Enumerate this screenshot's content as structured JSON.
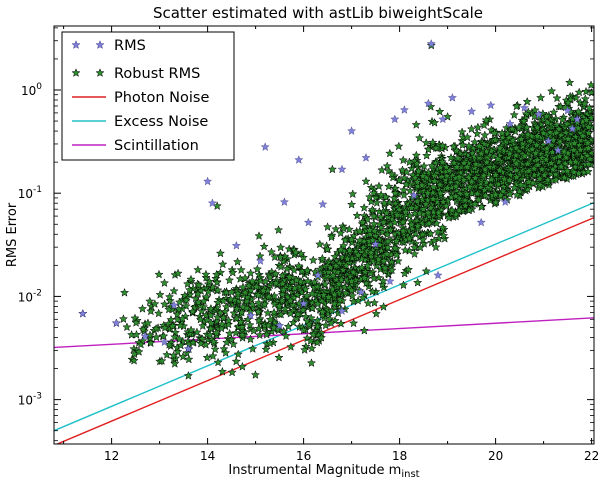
{
  "chart_data": {
    "type": "scatter",
    "title": "Scatter estimated with astLib biweightScale",
    "xlabel": "Instrumental Magnitude m",
    "xlabel_subscript": "inst",
    "ylabel": "RMS Error",
    "xlim": [
      10.8,
      22.05
    ],
    "ylim_log10": [
      -3.43,
      0.62
    ],
    "x_ticks": [
      12,
      14,
      16,
      18,
      20,
      22
    ],
    "x_tick_labels": [
      "12",
      "14",
      "16",
      "18",
      "20",
      "22"
    ],
    "y_ticks_log10": [
      -3,
      -2,
      -1,
      0
    ],
    "y_tick_labels": [
      {
        "base": "10",
        "exp": "-3"
      },
      {
        "base": "10",
        "exp": "-2"
      },
      {
        "base": "10",
        "exp": "-1"
      },
      {
        "base": "10",
        "exp": "0"
      }
    ],
    "legend": {
      "position": "top-left",
      "entries": [
        {
          "label": "RMS",
          "kind": "rms-marker",
          "color": "#7b7bcf"
        },
        {
          "label": "Robust RMS",
          "kind": "robust-marker",
          "color": "#2e8b2e"
        },
        {
          "label": "Photon Noise",
          "kind": "line",
          "color": "#e02020"
        },
        {
          "label": "Excess Noise",
          "kind": "line",
          "color": "#20c0c8"
        },
        {
          "label": "Scintillation",
          "kind": "line",
          "color": "#c020c0"
        }
      ]
    },
    "lines": [
      {
        "name": "Photon Noise",
        "color": "#e02020",
        "x": [
          10.8,
          22.05
        ],
        "y": [
          0.00036,
          0.058
        ]
      },
      {
        "name": "Excess Noise",
        "color": "#20c0c8",
        "x": [
          10.8,
          22.05
        ],
        "y": [
          0.0005,
          0.081
        ]
      },
      {
        "name": "Scintillation",
        "color": "#c020c0",
        "x": [
          10.8,
          22.05
        ],
        "y": [
          0.0032,
          0.0062
        ]
      }
    ],
    "series": [
      {
        "name": "RMS",
        "marker": "star",
        "color": "#8080d8",
        "points": [
          [
            11.4,
            0.0068
          ],
          [
            12.1,
            0.0055
          ],
          [
            12.7,
            0.0041
          ],
          [
            13.1,
            0.0036
          ],
          [
            13.6,
            0.0031
          ],
          [
            14.0,
            0.13
          ],
          [
            14.1,
            0.08
          ],
          [
            14.9,
            0.0065
          ],
          [
            15.2,
            0.28
          ],
          [
            15.1,
            0.022
          ],
          [
            15.9,
            0.21
          ],
          [
            16.4,
            0.078
          ],
          [
            16.8,
            0.17
          ],
          [
            17.0,
            0.4
          ],
          [
            17.3,
            0.22
          ],
          [
            17.9,
            0.52
          ],
          [
            18.1,
            0.64
          ],
          [
            18.6,
            0.74
          ],
          [
            18.66,
            2.8
          ],
          [
            18.9,
            0.52
          ],
          [
            19.1,
            0.84
          ],
          [
            19.5,
            0.62
          ],
          [
            19.9,
            0.71
          ],
          [
            20.3,
            0.47
          ],
          [
            20.9,
            0.58
          ],
          [
            21.5,
            0.63
          ],
          [
            21.7,
            0.52
          ],
          [
            20.6,
            0.67
          ],
          [
            17.5,
            0.032
          ],
          [
            16.1,
            0.052
          ],
          [
            14.6,
            0.031
          ],
          [
            15.6,
            0.082
          ],
          [
            16.3,
            0.016
          ],
          [
            18.3,
            0.095
          ],
          [
            19.7,
            0.052
          ],
          [
            20.2,
            0.082
          ],
          [
            21.1,
            0.32
          ],
          [
            21.3,
            0.26
          ],
          [
            21.6,
            0.42
          ],
          [
            17.2,
            0.011
          ],
          [
            16.0,
            0.0085
          ],
          [
            13.3,
            0.0082
          ],
          [
            15.5,
            0.0052
          ],
          [
            16.8,
            0.0072
          ],
          [
            17.8,
            0.014
          ],
          [
            18.8,
            0.016
          ]
        ]
      },
      {
        "name": "Robust RMS",
        "marker": "star",
        "color": "#2e8b2e",
        "cloud": {
          "n_points": 2600,
          "x_range": [
            12.0,
            22.0
          ],
          "description": "dense cloud rising from ~0.004 at m=12 to ~0.2-0.5 at m=19-22"
        },
        "points": [
          [
            11.4,
            0.0068
          ],
          [
            12.1,
            0.0055
          ],
          [
            12.8,
            0.0042
          ],
          [
            13.2,
            0.0034
          ],
          [
            13.6,
            0.0017
          ],
          [
            14.2,
            0.075
          ],
          [
            14.5,
            0.011
          ],
          [
            14.7,
            0.018
          ],
          [
            15.3,
            0.0035
          ],
          [
            15.4,
            0.024
          ],
          [
            16.0,
            0.0047
          ],
          [
            16.5,
            0.047
          ],
          [
            16.6,
            0.17
          ],
          [
            17.0,
            0.014
          ],
          [
            17.3,
            0.13
          ],
          [
            18.66,
            2.7
          ],
          [
            19.0,
            0.55
          ],
          [
            20.0,
            0.15
          ],
          [
            21.0,
            0.38
          ]
        ]
      }
    ]
  }
}
